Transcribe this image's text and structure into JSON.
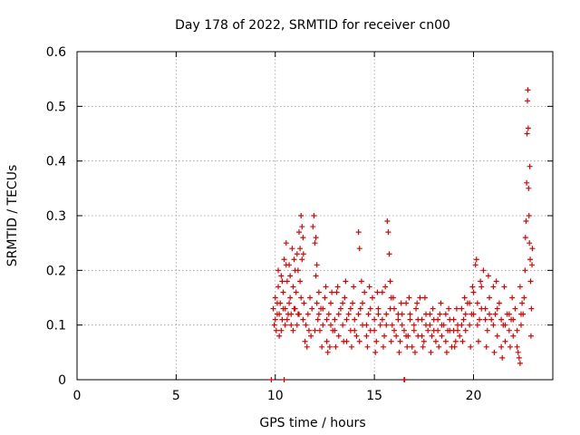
{
  "chart_data": {
    "type": "scatter",
    "title": "Day 178 of 2022, SRMTID for receiver cn00",
    "xlabel": "GPS time / hours",
    "ylabel": "SRMTID / TECUs",
    "xlim": [
      0,
      24
    ],
    "ylim": [
      0,
      0.6
    ],
    "xticks": [
      0,
      5,
      10,
      15,
      20
    ],
    "yticks": [
      0,
      0.1,
      0.2,
      0.3,
      0.4,
      0.5,
      0.6
    ],
    "x_tick_labels": [
      "0",
      "5",
      "10",
      "15",
      "20"
    ],
    "y_tick_labels": [
      "0",
      "0.1",
      "0.2",
      "0.3",
      "0.4",
      "0.5",
      "0.6"
    ],
    "grid": true,
    "marker": "+",
    "marker_color": "#e00000",
    "series": [
      {
        "name": "SRMTID",
        "points": [
          [
            9.8,
            0.0
          ],
          [
            10.45,
            0.0
          ],
          [
            16.5,
            0.0
          ],
          [
            16.52,
            0.0
          ],
          [
            9.9,
            0.13
          ],
          [
            9.95,
            0.1
          ],
          [
            10.0,
            0.15
          ],
          [
            10.05,
            0.09
          ],
          [
            10.1,
            0.12
          ],
          [
            10.15,
            0.17
          ],
          [
            10.2,
            0.08
          ],
          [
            10.25,
            0.14
          ],
          [
            10.3,
            0.19
          ],
          [
            10.35,
            0.11
          ],
          [
            10.4,
            0.16
          ],
          [
            10.45,
            0.22
          ],
          [
            10.5,
            0.13
          ],
          [
            10.55,
            0.25
          ],
          [
            10.6,
            0.18
          ],
          [
            10.65,
            0.12
          ],
          [
            10.7,
            0.21
          ],
          [
            10.75,
            0.15
          ],
          [
            10.8,
            0.1
          ],
          [
            10.85,
            0.24
          ],
          [
            10.9,
            0.17
          ],
          [
            10.95,
            0.13
          ],
          [
            11.0,
            0.2
          ],
          [
            11.05,
            0.16
          ],
          [
            11.1,
            0.23
          ],
          [
            11.15,
            0.12
          ],
          [
            11.2,
            0.27
          ],
          [
            11.25,
            0.18
          ],
          [
            11.3,
            0.3
          ],
          [
            11.35,
            0.22
          ],
          [
            11.4,
            0.26
          ],
          [
            11.45,
            0.14
          ],
          [
            11.5,
            0.07
          ],
          [
            11.55,
            0.1
          ],
          [
            11.6,
            0.06
          ],
          [
            11.65,
            0.12
          ],
          [
            11.7,
            0.09
          ],
          [
            11.75,
            0.15
          ],
          [
            11.8,
            0.08
          ],
          [
            11.85,
            0.13
          ],
          [
            11.9,
            0.28
          ],
          [
            11.95,
            0.3
          ],
          [
            12.0,
            0.25
          ],
          [
            12.05,
            0.19
          ],
          [
            12.1,
            0.14
          ],
          [
            12.15,
            0.11
          ],
          [
            12.2,
            0.16
          ],
          [
            12.25,
            0.09
          ],
          [
            12.3,
            0.13
          ],
          [
            12.4,
            0.1
          ],
          [
            12.5,
            0.15
          ],
          [
            12.6,
            0.07
          ],
          [
            12.7,
            0.12
          ],
          [
            12.75,
            0.06
          ],
          [
            12.8,
            0.14
          ],
          [
            12.9,
            0.09
          ],
          [
            13.0,
            0.11
          ],
          [
            13.1,
            0.16
          ],
          [
            13.2,
            0.08
          ],
          [
            13.3,
            0.13
          ],
          [
            13.4,
            0.1
          ],
          [
            13.5,
            0.15
          ],
          [
            13.6,
            0.07
          ],
          [
            13.7,
            0.12
          ],
          [
            13.8,
            0.09
          ],
          [
            13.9,
            0.14
          ],
          [
            14.0,
            0.11
          ],
          [
            14.1,
            0.08
          ],
          [
            14.2,
            0.27
          ],
          [
            14.25,
            0.24
          ],
          [
            14.3,
            0.13
          ],
          [
            14.4,
            0.1
          ],
          [
            14.5,
            0.16
          ],
          [
            14.6,
            0.08
          ],
          [
            14.7,
            0.12
          ],
          [
            14.8,
            0.09
          ],
          [
            14.9,
            0.15
          ],
          [
            15.0,
            0.11
          ],
          [
            15.1,
            0.07
          ],
          [
            15.2,
            0.13
          ],
          [
            15.3,
            0.1
          ],
          [
            15.4,
            0.16
          ],
          [
            15.5,
            0.08
          ],
          [
            15.6,
            0.12
          ],
          [
            15.65,
            0.29
          ],
          [
            15.7,
            0.27
          ],
          [
            15.75,
            0.23
          ],
          [
            15.8,
            0.18
          ],
          [
            15.85,
            0.15
          ],
          [
            15.9,
            0.1
          ],
          [
            16.0,
            0.13
          ],
          [
            16.1,
            0.08
          ],
          [
            16.2,
            0.11
          ],
          [
            16.3,
            0.07
          ],
          [
            16.4,
            0.12
          ],
          [
            16.5,
            0.09
          ],
          [
            16.6,
            0.14
          ],
          [
            16.7,
            0.08
          ],
          [
            16.8,
            0.11
          ],
          [
            16.9,
            0.06
          ],
          [
            17.0,
            0.1
          ],
          [
            17.1,
            0.13
          ],
          [
            17.2,
            0.08
          ],
          [
            17.3,
            0.15
          ],
          [
            17.4,
            0.11
          ],
          [
            17.5,
            0.07
          ],
          [
            17.6,
            0.12
          ],
          [
            17.7,
            0.09
          ],
          [
            17.8,
            0.1
          ],
          [
            17.9,
            0.08
          ],
          [
            18.0,
            0.11
          ],
          [
            18.1,
            0.07
          ],
          [
            18.2,
            0.09
          ],
          [
            18.3,
            0.12
          ],
          [
            18.4,
            0.08
          ],
          [
            18.5,
            0.1
          ],
          [
            18.6,
            0.07
          ],
          [
            18.7,
            0.09
          ],
          [
            18.8,
            0.11
          ],
          [
            18.9,
            0.06
          ],
          [
            19.0,
            0.09
          ],
          [
            19.1,
            0.07
          ],
          [
            19.2,
            0.1
          ],
          [
            19.3,
            0.08
          ],
          [
            19.4,
            0.13
          ],
          [
            19.5,
            0.11
          ],
          [
            19.6,
            0.09
          ],
          [
            19.7,
            0.14
          ],
          [
            19.8,
            0.1
          ],
          [
            19.9,
            0.12
          ],
          [
            20.0,
            0.16
          ],
          [
            20.1,
            0.21
          ],
          [
            20.15,
            0.22
          ],
          [
            20.2,
            0.14
          ],
          [
            20.3,
            0.11
          ],
          [
            20.4,
            0.17
          ],
          [
            20.5,
            0.2
          ],
          [
            20.6,
            0.13
          ],
          [
            20.7,
            0.09
          ],
          [
            20.8,
            0.15
          ],
          [
            20.9,
            0.11
          ],
          [
            21.0,
            0.17
          ],
          [
            21.1,
            0.12
          ],
          [
            21.2,
            0.08
          ],
          [
            21.3,
            0.14
          ],
          [
            21.4,
            0.06
          ],
          [
            21.5,
            0.1
          ],
          [
            21.6,
            0.07
          ],
          [
            21.7,
            0.12
          ],
          [
            21.8,
            0.09
          ],
          [
            21.9,
            0.11
          ],
          [
            22.0,
            0.08
          ],
          [
            22.1,
            0.13
          ],
          [
            22.2,
            0.06
          ],
          [
            22.3,
            0.04
          ],
          [
            22.35,
            0.03
          ],
          [
            22.4,
            0.1
          ],
          [
            22.45,
            0.14
          ],
          [
            22.5,
            0.12
          ],
          [
            22.55,
            0.15
          ],
          [
            22.6,
            0.2
          ],
          [
            22.62,
            0.26
          ],
          [
            22.65,
            0.29
          ],
          [
            22.68,
            0.36
          ],
          [
            22.7,
            0.45
          ],
          [
            22.72,
            0.51
          ],
          [
            22.74,
            0.53
          ],
          [
            22.76,
            0.46
          ],
          [
            22.78,
            0.35
          ],
          [
            22.8,
            0.3
          ],
          [
            22.82,
            0.25
          ],
          [
            22.84,
            0.39
          ],
          [
            22.86,
            0.22
          ],
          [
            22.88,
            0.18
          ],
          [
            22.9,
            0.08
          ],
          [
            22.92,
            0.13
          ],
          [
            22.95,
            0.21
          ],
          [
            22.97,
            0.24
          ],
          [
            10.0,
            0.11
          ],
          [
            10.1,
            0.14
          ],
          [
            10.2,
            0.12
          ],
          [
            10.3,
            0.09
          ],
          [
            10.4,
            0.13
          ],
          [
            10.5,
            0.1
          ],
          [
            10.6,
            0.11
          ],
          [
            10.7,
            0.14
          ],
          [
            10.8,
            0.12
          ],
          [
            10.9,
            0.09
          ],
          [
            11.0,
            0.13
          ],
          [
            11.1,
            0.1
          ],
          [
            11.2,
            0.12
          ],
          [
            11.3,
            0.15
          ],
          [
            11.4,
            0.11
          ],
          [
            12.0,
            0.09
          ],
          [
            12.2,
            0.12
          ],
          [
            12.4,
            0.13
          ],
          [
            12.6,
            0.11
          ],
          [
            12.8,
            0.1
          ],
          [
            13.0,
            0.09
          ],
          [
            13.2,
            0.12
          ],
          [
            13.4,
            0.14
          ],
          [
            13.6,
            0.11
          ],
          [
            13.8,
            0.13
          ],
          [
            14.0,
            0.09
          ],
          [
            14.2,
            0.12
          ],
          [
            14.4,
            0.14
          ],
          [
            14.6,
            0.1
          ],
          [
            14.8,
            0.13
          ],
          [
            15.0,
            0.09
          ],
          [
            15.2,
            0.12
          ],
          [
            15.4,
            0.11
          ],
          [
            15.6,
            0.1
          ],
          [
            15.8,
            0.13
          ],
          [
            16.0,
            0.09
          ],
          [
            16.2,
            0.12
          ],
          [
            16.4,
            0.1
          ],
          [
            16.6,
            0.08
          ],
          [
            16.8,
            0.12
          ],
          [
            17.0,
            0.09
          ],
          [
            17.2,
            0.11
          ],
          [
            17.4,
            0.08
          ],
          [
            17.6,
            0.1
          ],
          [
            17.8,
            0.12
          ],
          [
            18.0,
            0.09
          ],
          [
            18.2,
            0.11
          ],
          [
            18.4,
            0.1
          ],
          [
            18.6,
            0.12
          ],
          [
            18.8,
            0.09
          ],
          [
            19.0,
            0.11
          ],
          [
            19.2,
            0.09
          ],
          [
            19.4,
            0.1
          ],
          [
            19.6,
            0.12
          ],
          [
            19.8,
            0.14
          ],
          [
            20.0,
            0.12
          ],
          [
            20.2,
            0.1
          ],
          [
            20.4,
            0.13
          ],
          [
            20.6,
            0.11
          ],
          [
            20.8,
            0.12
          ],
          [
            21.0,
            0.1
          ],
          [
            21.2,
            0.13
          ],
          [
            21.4,
            0.11
          ],
          [
            21.6,
            0.1
          ],
          [
            21.8,
            0.12
          ],
          [
            22.0,
            0.11
          ],
          [
            22.2,
            0.09
          ],
          [
            22.4,
            0.12
          ],
          [
            10.15,
            0.2
          ],
          [
            10.35,
            0.18
          ],
          [
            10.55,
            0.21
          ],
          [
            10.75,
            0.19
          ],
          [
            10.95,
            0.22
          ],
          [
            11.15,
            0.2
          ],
          [
            11.25,
            0.24
          ],
          [
            11.35,
            0.28
          ],
          [
            11.42,
            0.23
          ],
          [
            12.05,
            0.26
          ],
          [
            12.1,
            0.21
          ],
          [
            12.55,
            0.17
          ],
          [
            12.85,
            0.16
          ],
          [
            13.15,
            0.17
          ],
          [
            13.55,
            0.18
          ],
          [
            13.95,
            0.17
          ],
          [
            14.35,
            0.18
          ],
          [
            14.75,
            0.17
          ],
          [
            15.15,
            0.16
          ],
          [
            15.55,
            0.17
          ],
          [
            15.95,
            0.15
          ],
          [
            16.35,
            0.14
          ],
          [
            16.75,
            0.15
          ],
          [
            17.15,
            0.14
          ],
          [
            17.55,
            0.15
          ],
          [
            17.95,
            0.13
          ],
          [
            18.35,
            0.14
          ],
          [
            18.75,
            0.13
          ],
          [
            19.15,
            0.13
          ],
          [
            19.55,
            0.15
          ],
          [
            19.95,
            0.17
          ],
          [
            20.35,
            0.18
          ],
          [
            20.75,
            0.19
          ],
          [
            21.15,
            0.18
          ],
          [
            21.55,
            0.17
          ],
          [
            21.95,
            0.15
          ],
          [
            22.35,
            0.17
          ],
          [
            12.35,
            0.06
          ],
          [
            12.65,
            0.05
          ],
          [
            13.05,
            0.06
          ],
          [
            13.45,
            0.07
          ],
          [
            13.85,
            0.06
          ],
          [
            14.25,
            0.07
          ],
          [
            14.65,
            0.06
          ],
          [
            15.05,
            0.05
          ],
          [
            15.45,
            0.06
          ],
          [
            15.85,
            0.07
          ],
          [
            16.25,
            0.05
          ],
          [
            16.65,
            0.06
          ],
          [
            17.05,
            0.05
          ],
          [
            17.45,
            0.06
          ],
          [
            17.85,
            0.05
          ],
          [
            18.25,
            0.06
          ],
          [
            18.65,
            0.05
          ],
          [
            19.05,
            0.06
          ],
          [
            19.45,
            0.07
          ],
          [
            19.85,
            0.06
          ],
          [
            20.25,
            0.07
          ],
          [
            20.65,
            0.06
          ],
          [
            21.05,
            0.05
          ],
          [
            21.45,
            0.04
          ],
          [
            21.85,
            0.06
          ],
          [
            22.25,
            0.05
          ]
        ]
      }
    ]
  }
}
